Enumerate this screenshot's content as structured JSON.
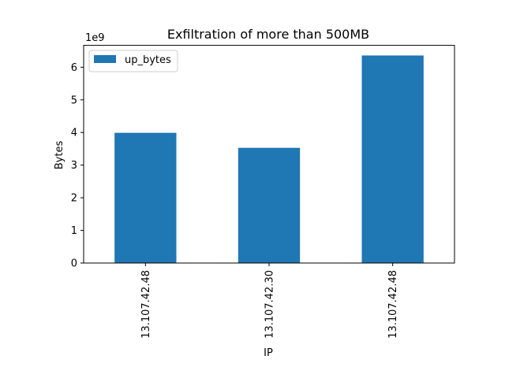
{
  "chart_data": {
    "type": "bar",
    "title": "Exfiltration of more than 500MB",
    "xlabel": "IP",
    "ylabel": "Bytes",
    "categories": [
      "13.107.42.48",
      "13.107.42.30",
      "13.107.42.48"
    ],
    "series": [
      {
        "name": "up_bytes",
        "values": [
          3990000000,
          3530000000,
          6360000000
        ],
        "color": "#1f77b4"
      }
    ],
    "ylim": [
      0,
      6670000000
    ],
    "yticks": [
      0,
      1,
      2,
      3,
      4,
      5,
      6
    ],
    "ytick_labels": [
      "0",
      "1",
      "2",
      "3",
      "4",
      "5",
      "6"
    ],
    "y_offset_label": "1e9",
    "legend": "top-left",
    "grid": false
  }
}
